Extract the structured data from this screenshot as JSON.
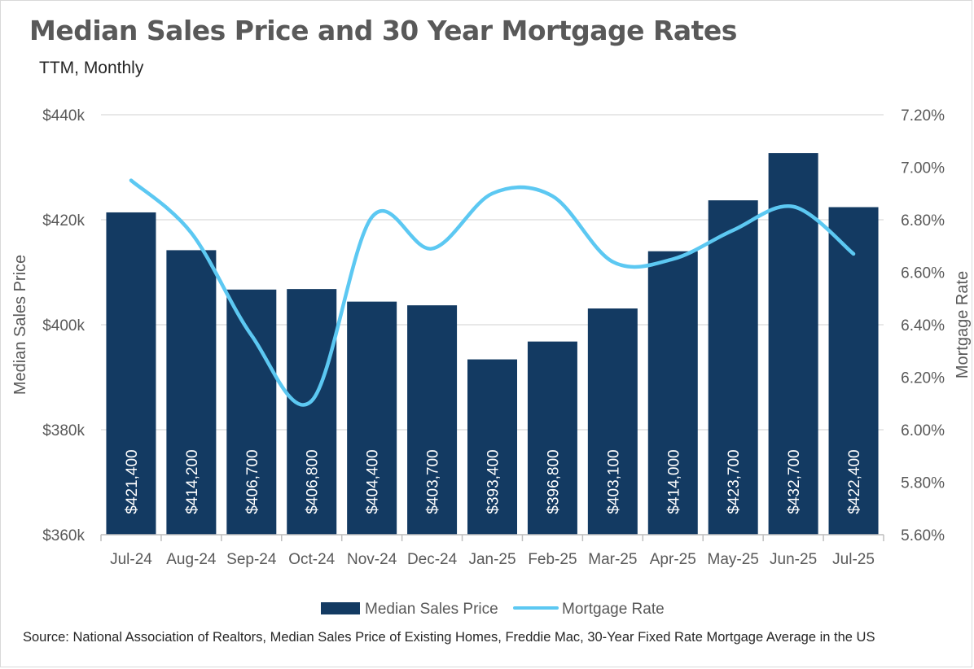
{
  "colors": {
    "bar": "#133A62",
    "line": "#5CC8F2",
    "grid": "#d9d9d9",
    "text": "#595959"
  },
  "chart_data": {
    "type": "bar",
    "title": "Median Sales Price and 30 Year Mortgage Rates",
    "subtitle": "TTM, Monthly",
    "categories": [
      "Jul-24",
      "Aug-24",
      "Sep-24",
      "Oct-24",
      "Nov-24",
      "Dec-24",
      "Jan-25",
      "Feb-25",
      "Mar-25",
      "Apr-25",
      "May-25",
      "Jun-25",
      "Jul-25"
    ],
    "series": [
      {
        "name": "Median Sales Price",
        "type": "bar",
        "axis": "left",
        "values": [
          421400,
          414200,
          406700,
          406800,
          404400,
          403700,
          393400,
          396800,
          403100,
          414000,
          423700,
          432700,
          422400
        ],
        "labels": [
          "$421,400",
          "$414,200",
          "$406,700",
          "$406,800",
          "$404,400",
          "$403,700",
          "$393,400",
          "$396,800",
          "$403,100",
          "$414,000",
          "$423,700",
          "$432,700",
          "$422,400"
        ]
      },
      {
        "name": "Mortgage Rate",
        "type": "line",
        "axis": "right",
        "values": [
          6.95,
          6.75,
          6.36,
          6.11,
          6.81,
          6.69,
          6.9,
          6.89,
          6.64,
          6.65,
          6.76,
          6.85,
          6.67
        ]
      }
    ],
    "ylabel_left": "Median Sales Price",
    "ylabel_right": "Mortgage Rate",
    "ylim_left": [
      360000,
      440000
    ],
    "ylim_right": [
      5.6,
      7.2
    ],
    "yticks_left": [
      "$440k",
      "$420k",
      "$400k",
      "$380k",
      "$360k"
    ],
    "yticks_right": [
      "7.20%",
      "7.00%",
      "6.80%",
      "6.60%",
      "6.40%",
      "6.20%",
      "6.00%",
      "5.80%",
      "5.60%"
    ],
    "grid": true,
    "legend_position": "bottom",
    "source": "Source: National Association of Realtors, Median Sales Price of Existing Homes, Freddie Mac, 30-Year Fixed Rate Mortgage Average in the US"
  }
}
